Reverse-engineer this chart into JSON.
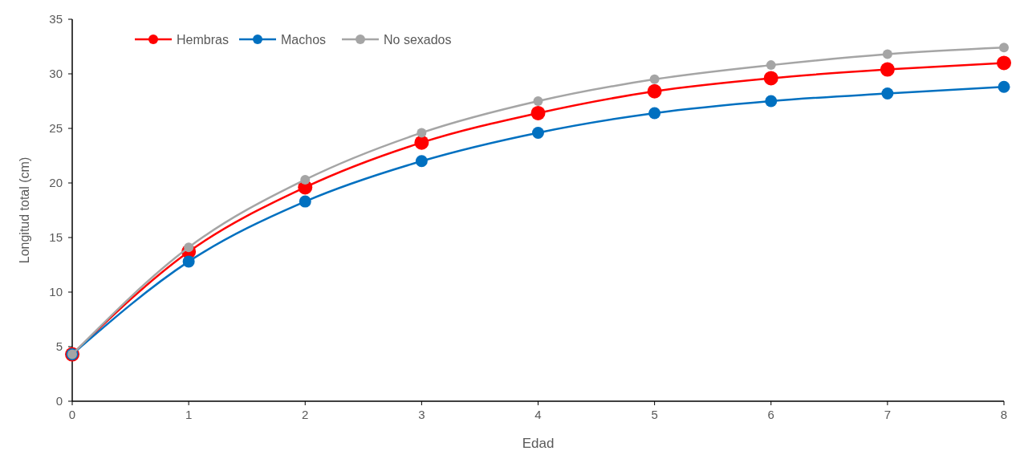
{
  "chart_data": {
    "type": "line",
    "xlabel": "Edad",
    "ylabel": "Longitud total (cm)",
    "x": [
      0,
      1,
      2,
      3,
      4,
      5,
      6,
      7,
      8
    ],
    "xlim": [
      0,
      8
    ],
    "xticks": [
      0,
      1,
      2,
      3,
      4,
      5,
      6,
      7,
      8
    ],
    "ylim": [
      0,
      35
    ],
    "yticks": [
      0,
      5,
      10,
      15,
      20,
      25,
      30,
      35
    ],
    "grid": false,
    "legend": "top left",
    "marker": "circle",
    "line_style": "solid",
    "series": [
      {
        "name": "Hembras",
        "color": "#ff0000",
        "values": [
          4.3,
          13.7,
          19.6,
          23.7,
          26.4,
          28.4,
          29.6,
          30.4,
          31.0
        ]
      },
      {
        "name": "Machos",
        "color": "#0070c0",
        "values": [
          4.3,
          12.8,
          18.3,
          22.0,
          24.6,
          26.4,
          27.5,
          28.2,
          28.8
        ]
      },
      {
        "name": "No sexados",
        "color": "#a5a5a5",
        "values": [
          4.3,
          14.1,
          20.3,
          24.6,
          27.5,
          29.5,
          30.8,
          31.8,
          32.4
        ]
      }
    ]
  }
}
